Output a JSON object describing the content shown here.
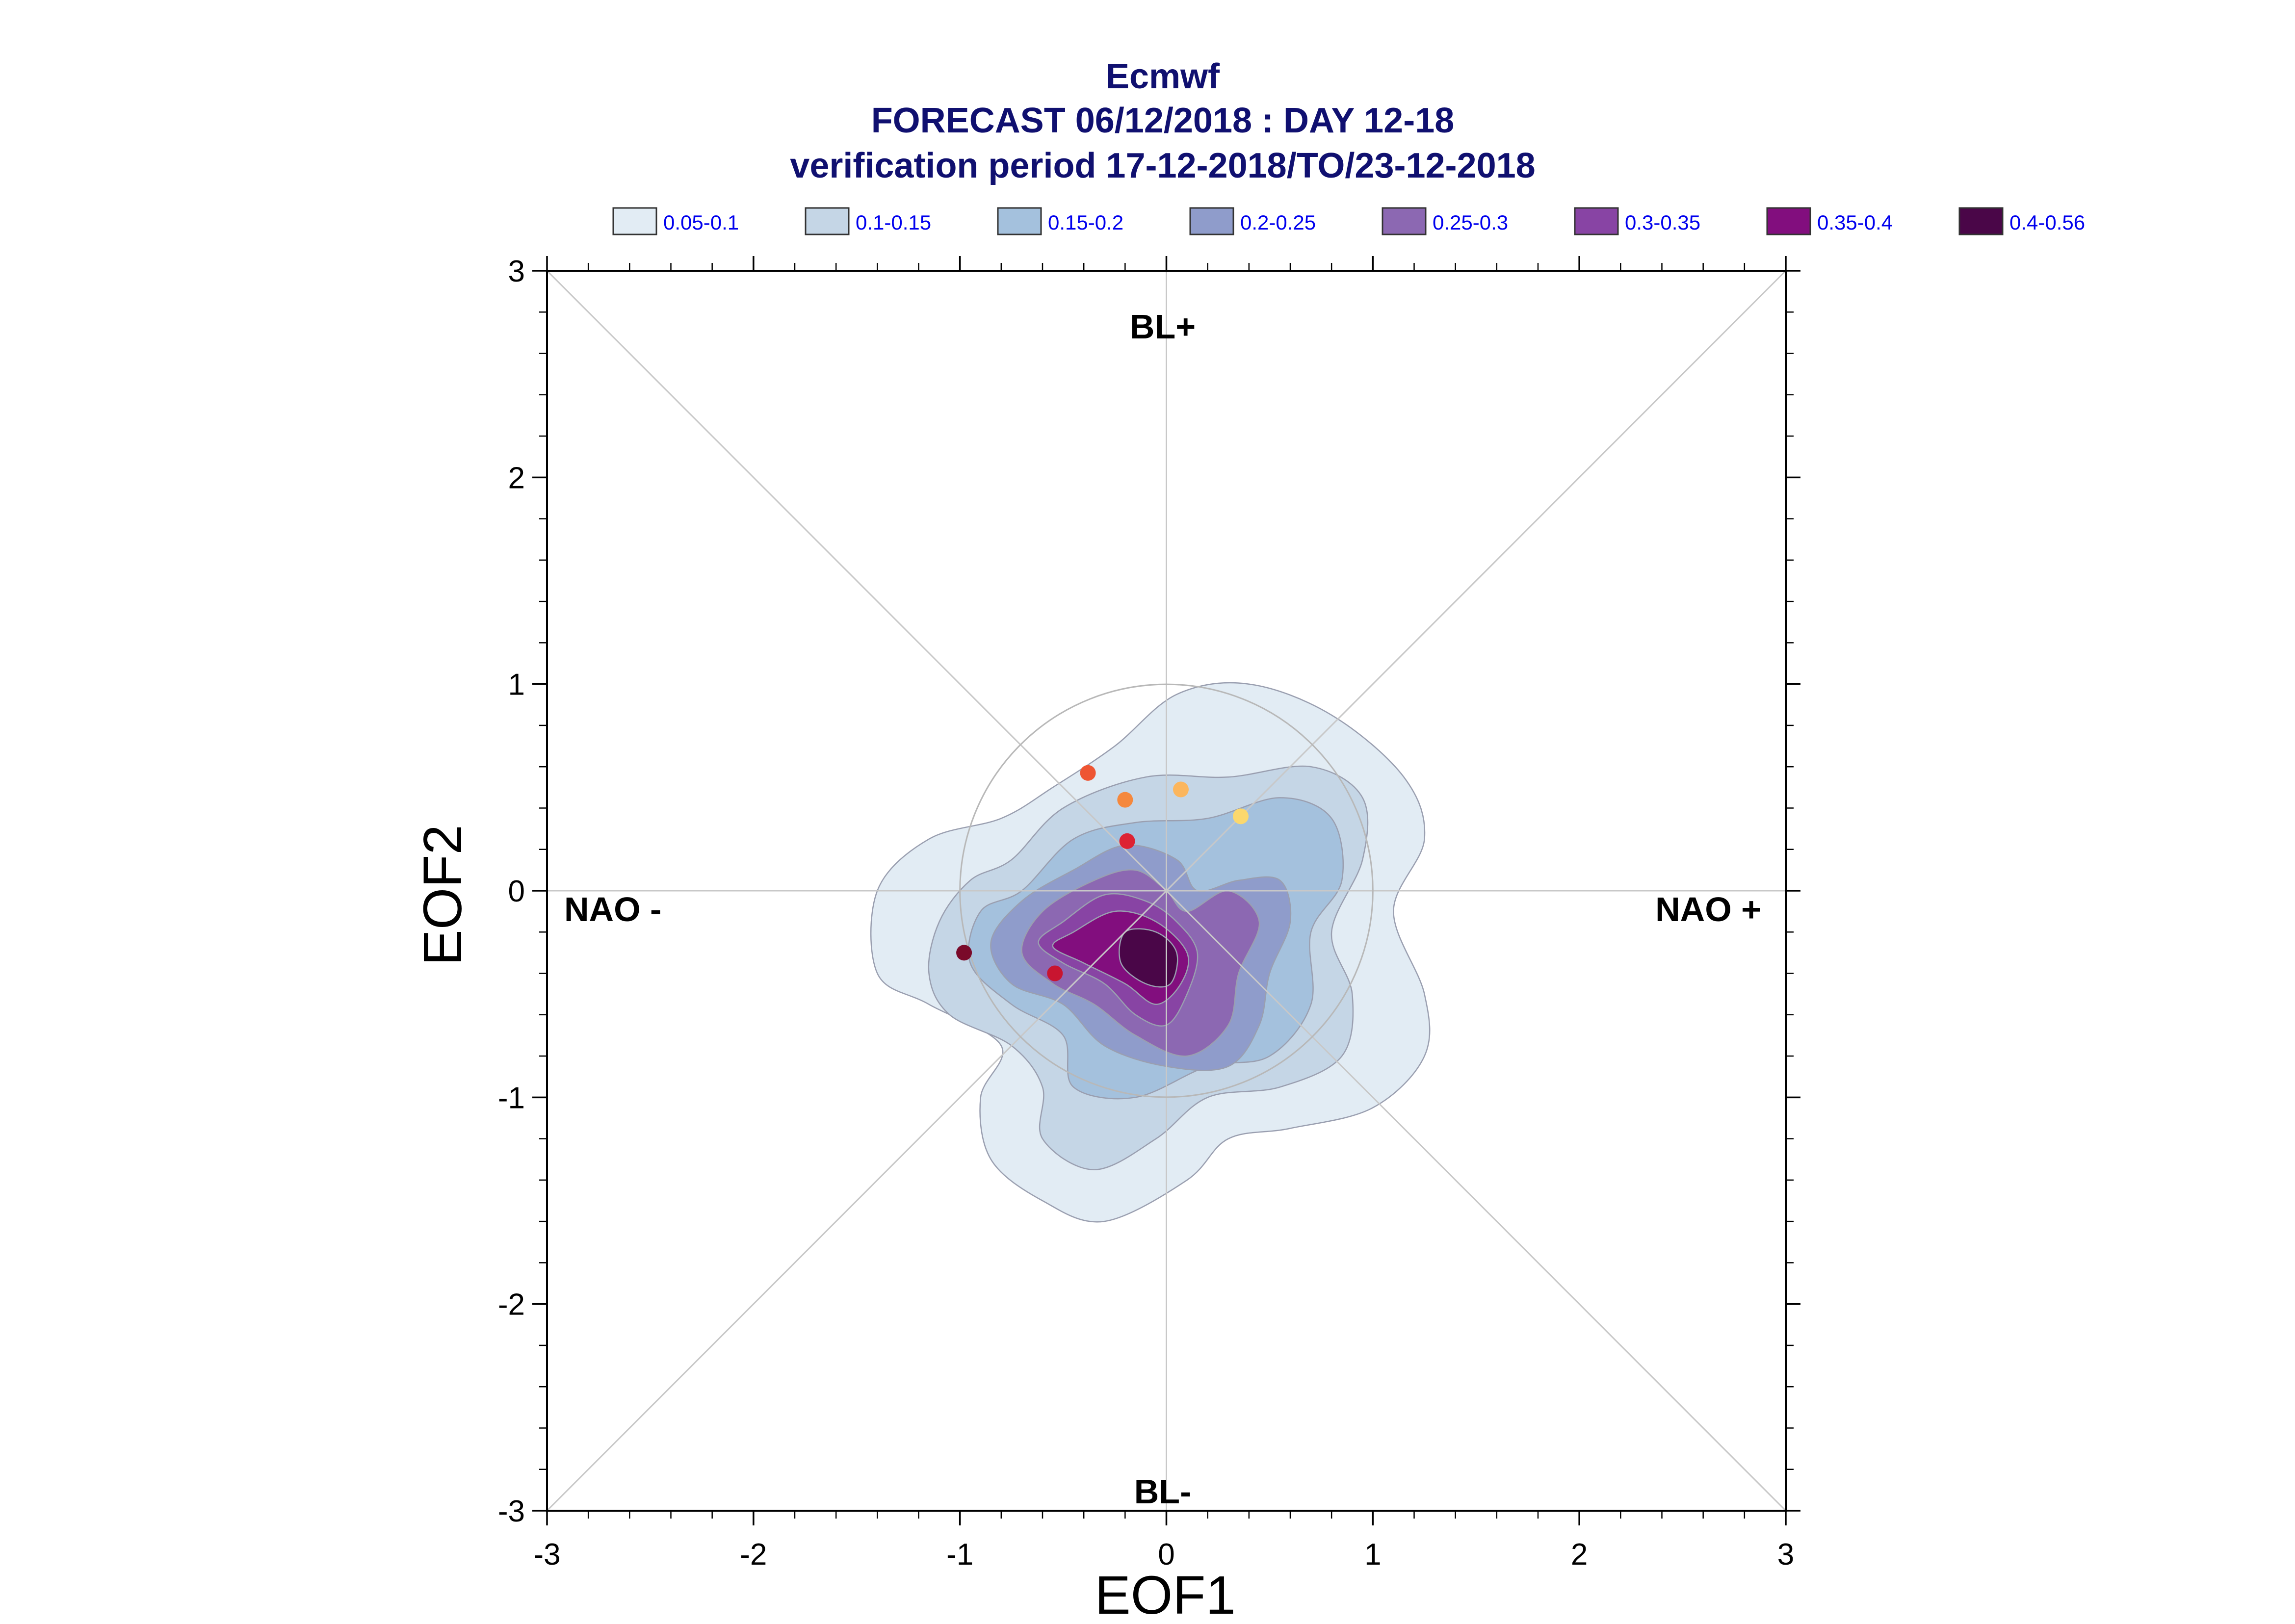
{
  "chart_data": {
    "type": "density-contour",
    "title_lines": [
      "Ecmwf",
      "FORECAST 06/12/2018 : DAY 12-18",
      "verification period 17-12-2018/TO/23-12-2018"
    ],
    "xlabel": "EOF1",
    "ylabel": "EOF2",
    "xlim": [
      -3,
      3
    ],
    "ylim": [
      -3,
      3
    ],
    "xticks": [
      -3,
      -2,
      -1,
      0,
      1,
      2,
      3
    ],
    "yticks": [
      -3,
      -2,
      -1,
      0,
      1,
      2,
      3
    ],
    "xtick_labels": [
      "-3",
      "-2",
      "-1",
      "0",
      "1",
      "2",
      "3"
    ],
    "ytick_labels": [
      "-3",
      "-2",
      "-1",
      "0",
      "1",
      "2",
      "3"
    ],
    "grid": false,
    "regime_labels": {
      "top": "BL+",
      "bottom": "BL-",
      "left": "NAO -",
      "right": "NAO +"
    },
    "unit_circle_radius": 1,
    "legend_position": "top",
    "legend": [
      {
        "label": "0.05-0.1",
        "color": "#e2ecf4"
      },
      {
        "label": "0.1-0.15",
        "color": "#c5d6e6"
      },
      {
        "label": "0.15-0.2",
        "color": "#a4c1dd"
      },
      {
        "label": "0.2-0.25",
        "color": "#8f9ccb"
      },
      {
        "label": "0.25-0.3",
        "color": "#8c68b2"
      },
      {
        "label": "0.3-0.35",
        "color": "#8844a4"
      },
      {
        "label": "0.35-0.4",
        "color": "#820e7e"
      },
      {
        "label": "0.4-0.56",
        "color": "#4a0648"
      }
    ],
    "contours": [
      {
        "level": "0.05-0.1",
        "color": "#e2ecf4",
        "points": [
          [
            -0.55,
            0.5
          ],
          [
            -0.25,
            0.7
          ],
          [
            0.05,
            0.95
          ],
          [
            0.4,
            1.0
          ],
          [
            0.8,
            0.85
          ],
          [
            1.15,
            0.55
          ],
          [
            1.25,
            0.25
          ],
          [
            1.1,
            -0.1
          ],
          [
            1.25,
            -0.5
          ],
          [
            1.25,
            -0.8
          ],
          [
            1.0,
            -1.05
          ],
          [
            0.6,
            -1.15
          ],
          [
            0.3,
            -1.2
          ],
          [
            0.1,
            -1.4
          ],
          [
            -0.3,
            -1.6
          ],
          [
            -0.6,
            -1.5
          ],
          [
            -0.85,
            -1.3
          ],
          [
            -0.9,
            -1.0
          ],
          [
            -0.8,
            -0.75
          ],
          [
            -1.15,
            -0.55
          ],
          [
            -1.4,
            -0.4
          ],
          [
            -1.4,
            0.0
          ],
          [
            -1.15,
            0.25
          ],
          [
            -0.8,
            0.35
          ]
        ]
      },
      {
        "level": "0.1-0.15",
        "color": "#c5d6e6",
        "points": [
          [
            -0.75,
            0.15
          ],
          [
            -0.5,
            0.4
          ],
          [
            -0.1,
            0.55
          ],
          [
            0.3,
            0.55
          ],
          [
            0.7,
            0.6
          ],
          [
            0.95,
            0.45
          ],
          [
            0.95,
            0.15
          ],
          [
            0.8,
            -0.2
          ],
          [
            0.9,
            -0.5
          ],
          [
            0.85,
            -0.8
          ],
          [
            0.55,
            -0.95
          ],
          [
            0.2,
            -1.0
          ],
          [
            -0.05,
            -1.2
          ],
          [
            -0.35,
            -1.35
          ],
          [
            -0.6,
            -1.2
          ],
          [
            -0.6,
            -0.95
          ],
          [
            -0.75,
            -0.75
          ],
          [
            -1.05,
            -0.6
          ],
          [
            -1.15,
            -0.4
          ],
          [
            -1.1,
            -0.15
          ],
          [
            -0.95,
            0.05
          ]
        ]
      },
      {
        "level": "0.15-0.2",
        "color": "#a4c1dd",
        "points": [
          [
            -0.7,
            0.0
          ],
          [
            -0.45,
            0.25
          ],
          [
            -0.15,
            0.33
          ],
          [
            0.2,
            0.35
          ],
          [
            0.55,
            0.45
          ],
          [
            0.8,
            0.35
          ],
          [
            0.85,
            0.05
          ],
          [
            0.7,
            -0.2
          ],
          [
            0.7,
            -0.55
          ],
          [
            0.5,
            -0.8
          ],
          [
            0.2,
            -0.85
          ],
          [
            -0.15,
            -1.0
          ],
          [
            -0.45,
            -0.95
          ],
          [
            -0.5,
            -0.7
          ],
          [
            -0.75,
            -0.55
          ],
          [
            -0.95,
            -0.35
          ],
          [
            -0.9,
            -0.1
          ]
        ]
      },
      {
        "level": "0.2-0.25",
        "color": "#8f9ccb",
        "points": [
          [
            -0.7,
            -0.05
          ],
          [
            -0.45,
            0.1
          ],
          [
            -0.2,
            0.22
          ],
          [
            0.05,
            0.15
          ],
          [
            0.15,
            0.0
          ],
          [
            0.35,
            0.05
          ],
          [
            0.55,
            0.05
          ],
          [
            0.6,
            -0.15
          ],
          [
            0.5,
            -0.4
          ],
          [
            0.45,
            -0.65
          ],
          [
            0.3,
            -0.85
          ],
          [
            0.0,
            -0.85
          ],
          [
            -0.3,
            -0.75
          ],
          [
            -0.5,
            -0.55
          ],
          [
            -0.75,
            -0.45
          ],
          [
            -0.85,
            -0.25
          ]
        ]
      },
      {
        "level": "0.25-0.3",
        "color": "#8c68b2",
        "points": [
          [
            -0.6,
            -0.1
          ],
          [
            -0.35,
            0.05
          ],
          [
            -0.15,
            0.1
          ],
          [
            0.0,
            0.0
          ],
          [
            0.1,
            -0.1
          ],
          [
            0.3,
            0.0
          ],
          [
            0.45,
            -0.15
          ],
          [
            0.35,
            -0.4
          ],
          [
            0.3,
            -0.65
          ],
          [
            0.1,
            -0.8
          ],
          [
            -0.15,
            -0.7
          ],
          [
            -0.35,
            -0.55
          ],
          [
            -0.55,
            -0.45
          ],
          [
            -0.7,
            -0.3
          ]
        ]
      },
      {
        "level": "0.3-0.35",
        "color": "#8844a4",
        "points": [
          [
            -0.5,
            -0.15
          ],
          [
            -0.3,
            -0.02
          ],
          [
            -0.1,
            -0.05
          ],
          [
            0.05,
            -0.15
          ],
          [
            0.15,
            -0.3
          ],
          [
            0.1,
            -0.5
          ],
          [
            0.0,
            -0.65
          ],
          [
            -0.15,
            -0.6
          ],
          [
            -0.3,
            -0.45
          ],
          [
            -0.5,
            -0.35
          ],
          [
            -0.62,
            -0.25
          ]
        ]
      },
      {
        "level": "0.35-0.4",
        "color": "#820e7e",
        "points": [
          [
            -0.45,
            -0.2
          ],
          [
            -0.25,
            -0.1
          ],
          [
            -0.05,
            -0.15
          ],
          [
            0.1,
            -0.3
          ],
          [
            0.07,
            -0.45
          ],
          [
            -0.05,
            -0.55
          ],
          [
            -0.2,
            -0.45
          ],
          [
            -0.4,
            -0.35
          ],
          [
            -0.55,
            -0.27
          ]
        ]
      },
      {
        "level": "0.4-0.56",
        "color": "#4a0648",
        "points": [
          [
            -0.2,
            -0.2
          ],
          [
            -0.05,
            -0.2
          ],
          [
            0.05,
            -0.3
          ],
          [
            0.02,
            -0.45
          ],
          [
            -0.1,
            -0.45
          ],
          [
            -0.22,
            -0.35
          ]
        ]
      }
    ],
    "members": [
      {
        "x": -0.38,
        "y": 0.57,
        "color": "#ee5533"
      },
      {
        "x": -0.2,
        "y": 0.44,
        "color": "#f5883d"
      },
      {
        "x": 0.07,
        "y": 0.49,
        "color": "#fbb65e"
      },
      {
        "x": 0.36,
        "y": 0.36,
        "color": "#fcd86d"
      },
      {
        "x": -0.19,
        "y": 0.24,
        "color": "#dd2233"
      },
      {
        "x": -0.98,
        "y": -0.3,
        "color": "#7a0a2a"
      },
      {
        "x": -0.54,
        "y": -0.4,
        "color": "#c81530"
      }
    ]
  }
}
